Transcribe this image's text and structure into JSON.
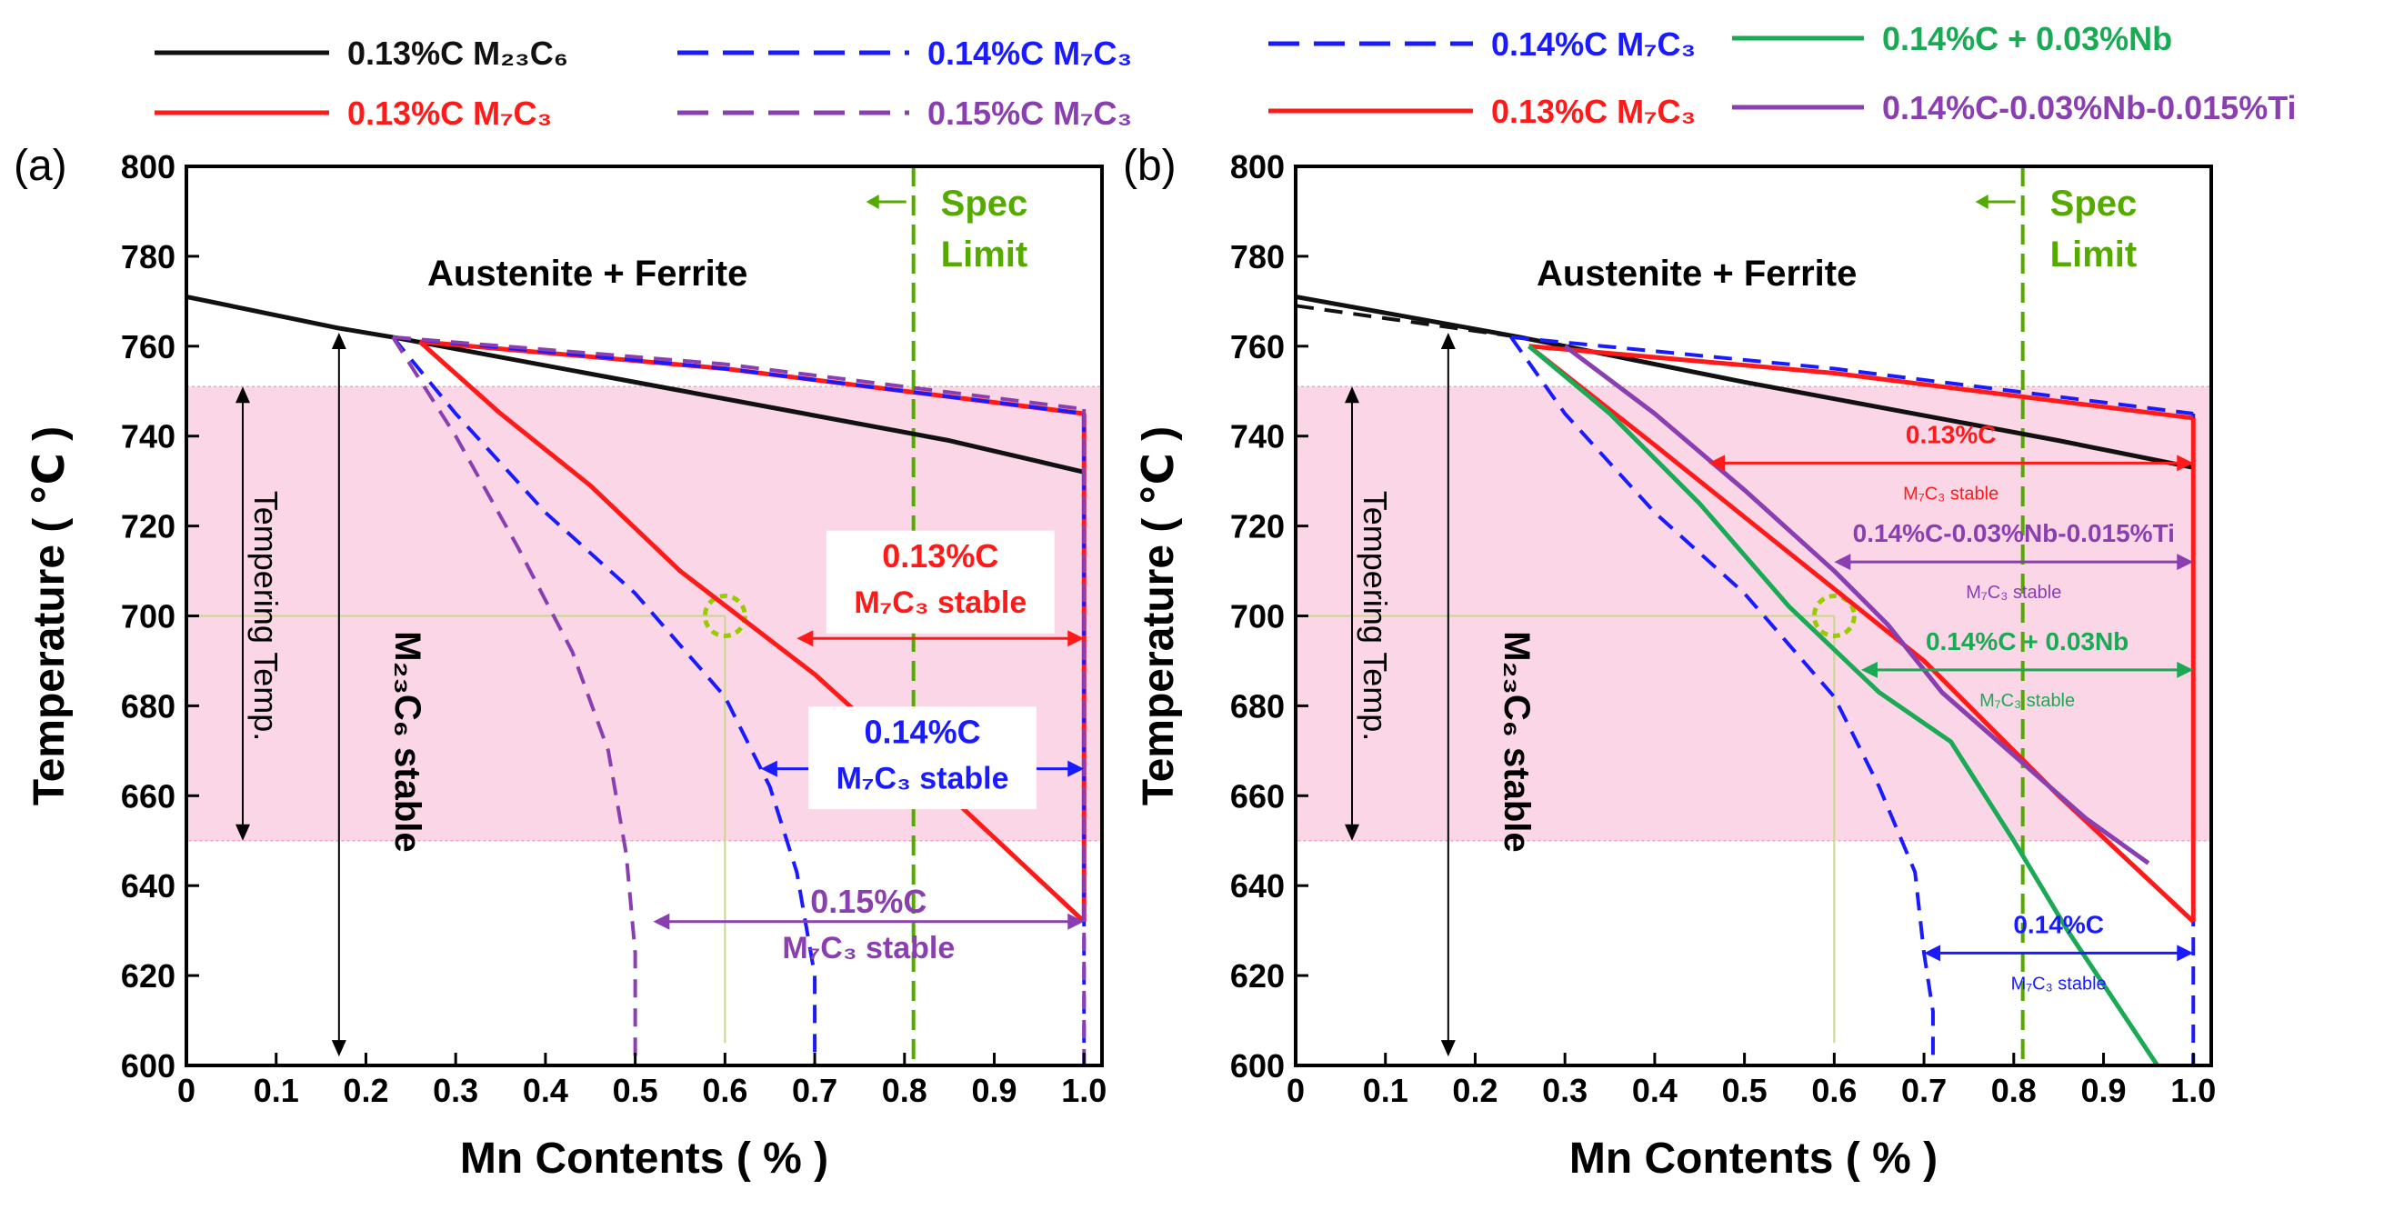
{
  "colors": {
    "black": "#111111",
    "red": "#ff1a1a",
    "blue": "#1a1aff",
    "purple": "#8a3fb0",
    "green": "#1aaa55",
    "spec_green": "#55aa00",
    "pink_band": "#fbd6e6",
    "pink_border": "#f0a0c0",
    "guide": "#c8d88a"
  },
  "chart_data": [
    {
      "type": "line",
      "panel_label": "(a)",
      "xlabel": "Mn Contents ( % )",
      "ylabel": "Temperature ( ℃ )",
      "xlim": [
        0,
        1.02
      ],
      "ylim": [
        600,
        800
      ],
      "x_ticks": [
        "0",
        "0.1",
        "0.2",
        "0.3",
        "0.4",
        "0.5",
        "0.6",
        "0.7",
        "0.8",
        "0.9",
        "1.0"
      ],
      "y_ticks": [
        "600",
        "620",
        "640",
        "660",
        "680",
        "700",
        "720",
        "740",
        "760",
        "780",
        "800"
      ],
      "legend": [
        {
          "label": "0.13%C M₂₃C₆",
          "color": "black",
          "dash": false
        },
        {
          "label": "0.14%C M₇C₃",
          "color": "blue",
          "dash": true
        },
        {
          "label": "0.13%C M₇C₃",
          "color": "red",
          "dash": false
        },
        {
          "label": "0.15%C M₇C₃",
          "color": "purple",
          "dash": true
        }
      ],
      "tempering_band": [
        650,
        751
      ],
      "spec_limit_x": 0.81,
      "spec_limit_label": [
        "Spec",
        "Limit"
      ],
      "guide": {
        "x": 0.6,
        "y": 700
      },
      "region_labels": {
        "austenite_ferrite": "Austenite + Ferrite",
        "tempering": "Tempering   Temp.",
        "m23c6_stable": "M₂₃C₆  stable"
      },
      "annotations": [
        {
          "lines": [
            "0.13%C",
            "M₇C₃ stable"
          ],
          "color": "red",
          "y": 695,
          "x1": 0.68,
          "x2": 1.0
        },
        {
          "lines": [
            "0.14%C",
            "M₇C₃ stable"
          ],
          "color": "blue",
          "y": 666,
          "x1": 0.64,
          "x2": 1.0
        },
        {
          "lines": [
            "0.15%C",
            "M₇C₃ stable"
          ],
          "color": "purple",
          "y": 632,
          "x1": 0.52,
          "x2": 1.0
        }
      ],
      "series": [
        {
          "name": "0.13%C M23C6 top",
          "color": "black",
          "dash": false,
          "x": [
            0,
            0.17,
            0.23,
            0.5,
            0.85,
            1.0
          ],
          "y": [
            771,
            764,
            762,
            752,
            739,
            732
          ]
        },
        {
          "name": "0.13%C M7C3 lower",
          "color": "red",
          "dash": false,
          "x": [
            0.26,
            0.35,
            0.45,
            0.55,
            0.7,
            0.85,
            1.0
          ],
          "y": [
            761,
            745,
            729,
            710,
            687,
            660,
            632
          ]
        },
        {
          "name": "0.13%C M7C3 top",
          "color": "red",
          "dash": false,
          "x": [
            0.26,
            0.6,
            1.0
          ],
          "y": [
            761,
            755,
            745
          ]
        },
        {
          "name": "0.13%C M7C3 right",
          "color": "red",
          "dash": false,
          "x": [
            1.0,
            1.0
          ],
          "y": [
            745,
            632
          ]
        },
        {
          "name": "0.14%C M7C3 left",
          "color": "blue",
          "dash": true,
          "x": [
            0.23,
            0.3,
            0.4,
            0.5,
            0.6,
            0.65,
            0.68,
            0.7,
            0.7
          ],
          "y": [
            762,
            745,
            723,
            705,
            682,
            662,
            643,
            620,
            600
          ]
        },
        {
          "name": "0.14%C M7C3 top",
          "color": "blue",
          "dash": true,
          "x": [
            0.23,
            0.6,
            1.0
          ],
          "y": [
            762,
            755,
            745
          ]
        },
        {
          "name": "0.14%C M7C3 right",
          "color": "blue",
          "dash": true,
          "x": [
            1.0,
            1.0
          ],
          "y": [
            745,
            600
          ]
        },
        {
          "name": "0.15%C M7C3 left",
          "color": "purple",
          "dash": true,
          "x": [
            0.23,
            0.3,
            0.37,
            0.43,
            0.47,
            0.49,
            0.5,
            0.5
          ],
          "y": [
            762,
            740,
            715,
            692,
            670,
            647,
            625,
            600
          ]
        },
        {
          "name": "0.15%C M7C3 top",
          "color": "purple",
          "dash": true,
          "x": [
            0.23,
            0.6,
            1.0
          ],
          "y": [
            762,
            756,
            746
          ]
        },
        {
          "name": "0.15%C M7C3 right",
          "color": "purple",
          "dash": true,
          "x": [
            1.0,
            1.0
          ],
          "y": [
            746,
            600
          ]
        },
        {
          "name": "0.15%C M7C3 bottom",
          "color": "purple",
          "dash": true,
          "x": [
            0.5,
            1.0
          ],
          "y": [
            600,
            600
          ]
        }
      ]
    },
    {
      "type": "line",
      "panel_label": "(b)",
      "xlabel": "Mn Contents ( % )",
      "ylabel": "Temperature ( ℃ )",
      "xlim": [
        0,
        1.02
      ],
      "ylim": [
        600,
        800
      ],
      "x_ticks": [
        "0",
        "0.1",
        "0.2",
        "0.3",
        "0.4",
        "0.5",
        "0.6",
        "0.7",
        "0.8",
        "0.9",
        "1.0"
      ],
      "y_ticks": [
        "600",
        "620",
        "640",
        "660",
        "680",
        "700",
        "720",
        "740",
        "760",
        "780",
        "800"
      ],
      "legend": [
        {
          "label": "0.14%C M₇C₃",
          "color": "blue",
          "dash": true
        },
        {
          "label": "0.14%C + 0.03%Nb",
          "color": "green",
          "dash": false
        },
        {
          "label": "0.13%C M₇C₃",
          "color": "red",
          "dash": false
        },
        {
          "label": "0.14%C-0.03%Nb-0.015%Ti",
          "color": "purple",
          "dash": false
        }
      ],
      "tempering_band": [
        650,
        751
      ],
      "spec_limit_x": 0.81,
      "spec_limit_label": [
        "Spec",
        "Limit"
      ],
      "guide": {
        "x": 0.6,
        "y": 700
      },
      "region_labels": {
        "austenite_ferrite": "Austenite + Ferrite",
        "tempering": "Tempering   Temp.",
        "m23c6_stable": "M₂₃C₆  stable"
      },
      "annotations": [
        {
          "lines": [
            "0.13%C",
            "M₇C₃ stable"
          ],
          "color": "red",
          "y": 734,
          "x1": 0.46,
          "x2": 1.0
        },
        {
          "lines": [
            "0.14%C-0.03%Nb-0.015%Ti",
            "M₇C₃ stable"
          ],
          "color": "purple",
          "y": 712,
          "x1": 0.6,
          "x2": 1.0
        },
        {
          "lines": [
            "0.14%C + 0.03Nb",
            "M₇C₃ stable"
          ],
          "color": "green",
          "y": 688,
          "x1": 0.63,
          "x2": 1.0
        },
        {
          "lines": [
            "0.14%C",
            "M₇C₃ stable"
          ],
          "color": "blue",
          "y": 625,
          "x1": 0.7,
          "x2": 1.0
        }
      ],
      "series": [
        {
          "name": "0.13%C M23C6 top",
          "color": "black",
          "dash": false,
          "x": [
            0,
            0.25,
            0.5,
            0.85,
            1.0
          ],
          "y": [
            771,
            762,
            752,
            739,
            733
          ]
        },
        {
          "name": "M23C6 extension",
          "color": "black",
          "dash": true,
          "x": [
            0,
            0.25
          ],
          "y": [
            769,
            762
          ]
        },
        {
          "name": "0.14%C M7C3 left",
          "color": "blue",
          "dash": true,
          "x": [
            0.24,
            0.3,
            0.4,
            0.5,
            0.6,
            0.65,
            0.69,
            0.7,
            0.71,
            0.71
          ],
          "y": [
            762,
            745,
            723,
            705,
            682,
            662,
            643,
            625,
            612,
            600
          ]
        },
        {
          "name": "0.14%C M7C3 top",
          "color": "blue",
          "dash": true,
          "x": [
            0.24,
            0.6,
            1.0
          ],
          "y": [
            762,
            755,
            745
          ]
        },
        {
          "name": "0.14%C M7C3 right",
          "color": "blue",
          "dash": true,
          "x": [
            1.0,
            1.0
          ],
          "y": [
            745,
            600
          ]
        },
        {
          "name": "0.14%C M7C3 bottom",
          "color": "blue",
          "dash": true,
          "x": [
            0.71,
            1.0
          ],
          "y": [
            600,
            600
          ]
        },
        {
          "name": "0.13%C M7C3 lower",
          "color": "red",
          "dash": false,
          "x": [
            0.26,
            0.4,
            0.55,
            0.7,
            0.85,
            1.0
          ],
          "y": [
            760,
            738,
            714,
            690,
            660,
            632
          ]
        },
        {
          "name": "0.13%C M7C3 top",
          "color": "red",
          "dash": false,
          "x": [
            0.26,
            0.6,
            1.0
          ],
          "y": [
            760,
            754,
            744
          ]
        },
        {
          "name": "0.13%C M7C3 right",
          "color": "red",
          "dash": false,
          "x": [
            1.0,
            1.0
          ],
          "y": [
            744,
            632
          ]
        },
        {
          "name": "0.14%C+0.03%Nb",
          "color": "green",
          "dash": false,
          "x": [
            0.26,
            0.35,
            0.45,
            0.55,
            0.65,
            0.73,
            0.8,
            0.86,
            0.92,
            0.96
          ],
          "y": [
            760,
            745,
            725,
            702,
            683,
            672,
            650,
            630,
            612,
            600
          ]
        },
        {
          "name": "0.14%C-0.03%Nb-0.015%Ti",
          "color": "purple",
          "dash": false,
          "x": [
            0.3,
            0.4,
            0.5,
            0.6,
            0.66,
            0.72,
            0.8,
            0.88,
            0.95
          ],
          "y": [
            760,
            745,
            728,
            710,
            698,
            683,
            669,
            655,
            645
          ]
        }
      ]
    }
  ]
}
